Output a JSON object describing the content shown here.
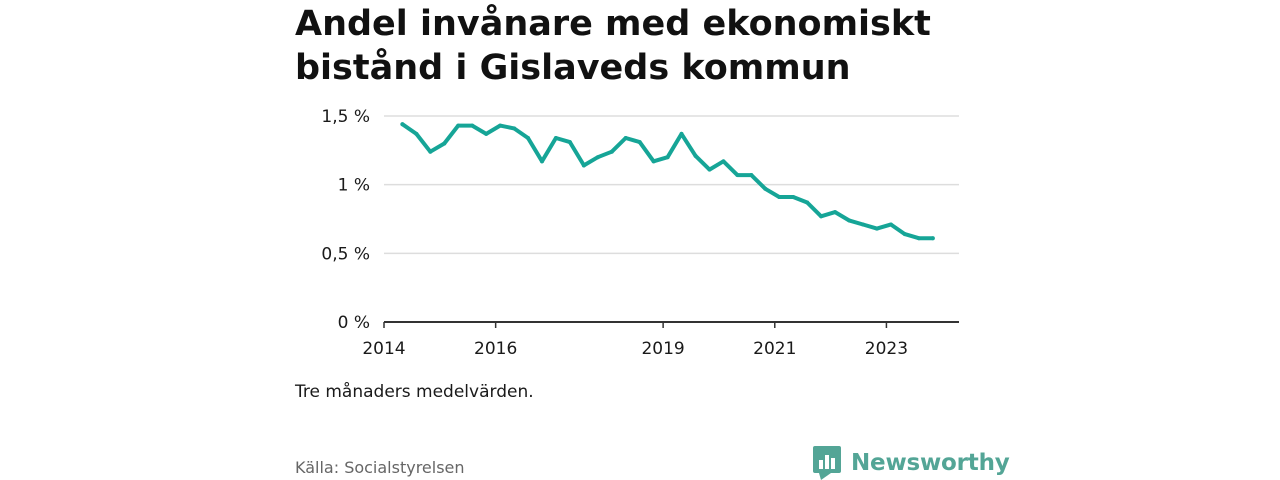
{
  "title": "Andel invånare med ekonomiskt bistånd i Gislaveds kommun",
  "note": "Tre månaders medelvärden.",
  "source": "Källa: Socialstyrelsen",
  "brand": {
    "name": "Newsworthy",
    "icon": "newsworthy-logo-icon",
    "color": "#53a596"
  },
  "colors": {
    "line": "#16a597",
    "grid": "#dddddd",
    "axis": "#333333"
  },
  "chart_data": {
    "type": "line",
    "title": "Andel invånare med ekonomiskt bistånd i Gislaveds kommun",
    "xlabel": "",
    "ylabel": "",
    "ylim": [
      0,
      1.5
    ],
    "xlim": [
      2014.0,
      2024.3
    ],
    "yticks": [
      {
        "value": 0,
        "label": "0 %"
      },
      {
        "value": 0.5,
        "label": "0,5 %"
      },
      {
        "value": 1,
        "label": "1 %"
      },
      {
        "value": 1.5,
        "label": "1,5 %"
      }
    ],
    "xticks": [
      {
        "value": 2014,
        "label": "2014"
      },
      {
        "value": 2016,
        "label": "2016"
      },
      {
        "value": 2019,
        "label": "2019"
      },
      {
        "value": 2021,
        "label": "2021"
      },
      {
        "value": 2023,
        "label": "2023"
      }
    ],
    "grid": true,
    "series": [
      {
        "name": "Andel invånare med ekonomiskt bistånd",
        "x": [
          2014.33,
          2014.58,
          2014.83,
          2015.08,
          2015.33,
          2015.58,
          2015.83,
          2016.08,
          2016.33,
          2016.58,
          2016.83,
          2017.08,
          2017.33,
          2017.58,
          2017.83,
          2018.08,
          2018.33,
          2018.58,
          2018.83,
          2019.08,
          2019.33,
          2019.58,
          2019.83,
          2020.08,
          2020.33,
          2020.58,
          2020.83,
          2021.08,
          2021.33,
          2021.58,
          2021.83,
          2022.08,
          2022.33,
          2022.58,
          2022.83,
          2023.08,
          2023.33,
          2023.58,
          2023.83
        ],
        "values": [
          1.44,
          1.37,
          1.24,
          1.3,
          1.43,
          1.43,
          1.37,
          1.43,
          1.41,
          1.34,
          1.17,
          1.34,
          1.31,
          1.14,
          1.2,
          1.24,
          1.34,
          1.31,
          1.17,
          1.2,
          1.37,
          1.21,
          1.11,
          1.17,
          1.07,
          1.07,
          0.97,
          0.91,
          0.91,
          0.87,
          0.77,
          0.8,
          0.74,
          0.71,
          0.68,
          0.71,
          0.64,
          0.61,
          0.61
        ]
      }
    ]
  }
}
